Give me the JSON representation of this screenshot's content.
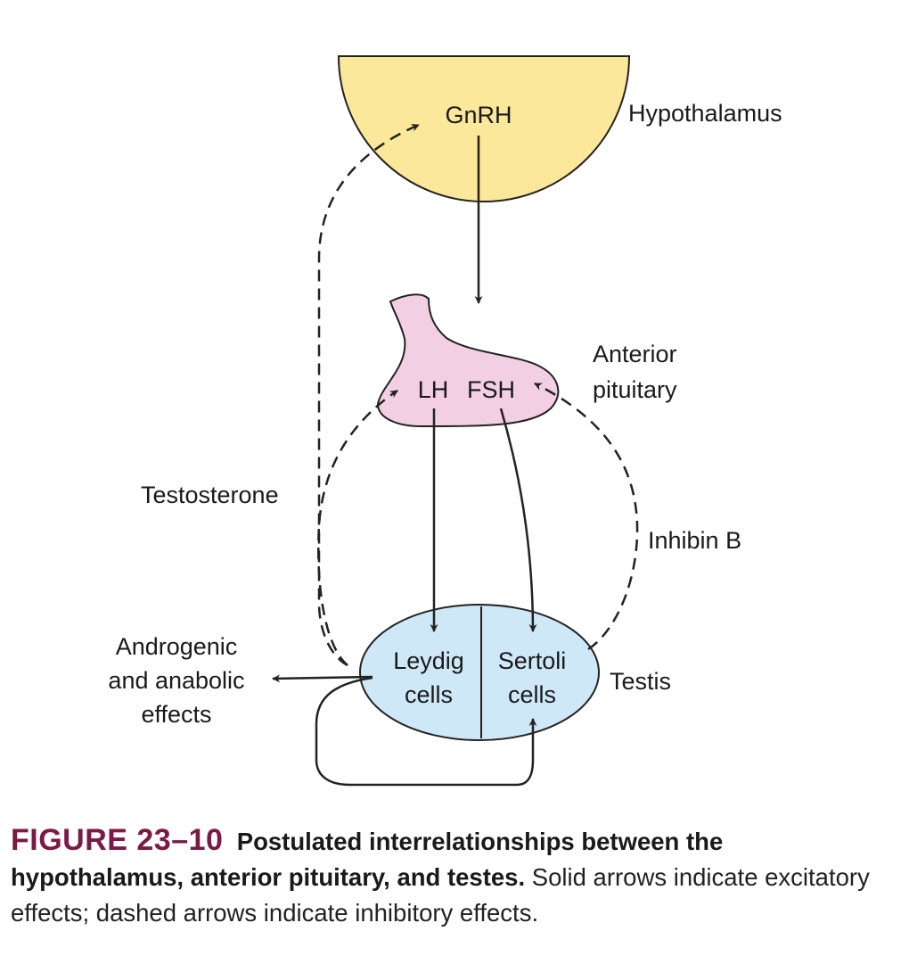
{
  "diagram": {
    "hypothalamus": {
      "hormone": "GnRH",
      "label": "Hypothalamus"
    },
    "pituitary": {
      "hormone_lh": "LH",
      "hormone_fsh": "FSH",
      "label_line1": "Anterior",
      "label_line2": "pituitary"
    },
    "testis": {
      "leydig_line1": "Leydig",
      "leydig_line2": "cells",
      "sertoli_line1": "Sertoli",
      "sertoli_line2": "cells",
      "label": "Testis"
    },
    "feedback": {
      "testosterone": "Testosterone",
      "inhibin": "Inhibin B"
    },
    "output": {
      "line1": "Androgenic",
      "line2": "and anabolic",
      "line3": "effects"
    },
    "colors": {
      "hypothalamus_fill": "#fbe89a",
      "pituitary_fill": "#f2cfe2",
      "testis_fill": "#cfe8f8",
      "stroke": "#222222",
      "figure_number": "#7a1a45"
    }
  },
  "caption": {
    "figure_number": "FIGURE 23–10",
    "title": "Postulated interrelationships between the hypothalamus, anterior pituitary, and testes.",
    "text": "Solid arrows indicate excitatory effects; dashed arrows indicate inhibitory effects."
  }
}
